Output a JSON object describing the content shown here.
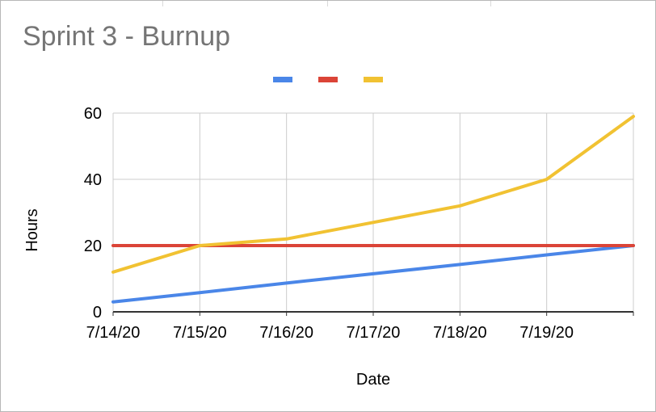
{
  "chart_data": {
    "type": "line",
    "title": "Sprint 3 - Burnup",
    "xlabel": "Date",
    "ylabel": "Hours",
    "categories": [
      "7/14/20",
      "7/15/20",
      "7/16/20",
      "7/17/20",
      "7/18/20",
      "7/19/20",
      ""
    ],
    "x_tick_labels": [
      "7/14/20",
      "7/15/20",
      "7/16/20",
      "7/17/20",
      "7/18/20",
      "7/19/20"
    ],
    "y_ticks": [
      0,
      20,
      40,
      60
    ],
    "ylim": [
      0,
      60
    ],
    "grid": true,
    "legend": "top-center",
    "series": [
      {
        "color": "#4a86e8",
        "values": [
          3,
          5.8,
          8.7,
          11.5,
          14.3,
          17.2,
          20
        ]
      },
      {
        "color": "#db4437",
        "values": [
          20,
          20,
          20,
          20,
          20,
          20,
          20
        ]
      },
      {
        "color": "#f1c232",
        "values": [
          12,
          20,
          22,
          27,
          32,
          40,
          59
        ]
      }
    ]
  }
}
